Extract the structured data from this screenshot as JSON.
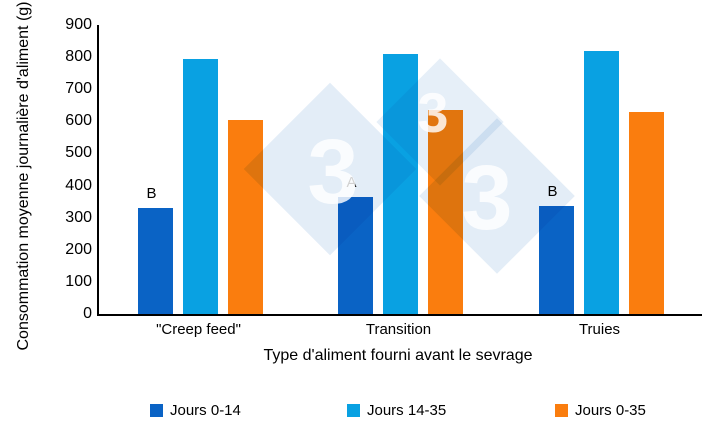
{
  "chart_data": {
    "type": "bar",
    "title": "",
    "xlabel": "Type d'aliment fourni avant le sevrage",
    "ylabel": "Consommation moyenne journalière d'aliment (g)",
    "categories": [
      "\"Creep feed\"",
      "Transition",
      "Truies"
    ],
    "series": [
      {
        "name": "Jours 0-14",
        "color": "#0A63C5",
        "values": [
          330,
          365,
          335
        ]
      },
      {
        "name": "Jours 14-35",
        "color": "#09A1E2",
        "values": [
          795,
          810,
          820
        ]
      },
      {
        "name": "Jours 0-35",
        "color": "#FA7D0E",
        "values": [
          605,
          635,
          630
        ]
      }
    ],
    "annotations": {
      "series": "Jours 0-14",
      "labels": [
        "B",
        "A",
        "B"
      ]
    },
    "ylim": [
      0,
      900
    ],
    "ytick_step": 100,
    "grid": false,
    "legend_position": "bottom",
    "axis_color": "#000000"
  },
  "watermark": {
    "glyphs": [
      "3",
      "3",
      "3"
    ],
    "diamond_color": "#E3EDF7",
    "glyph_color": "#FFFFFF"
  }
}
